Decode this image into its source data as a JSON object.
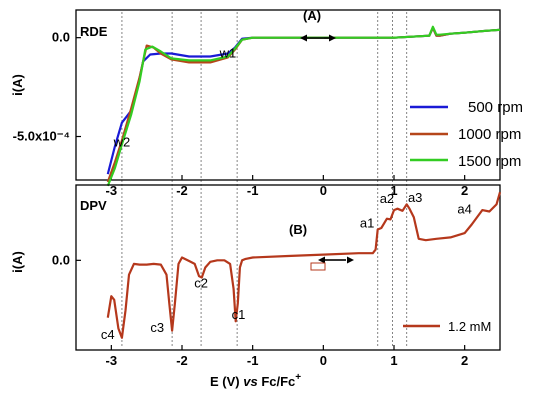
{
  "colors": {
    "s500": "#1a1ad6",
    "s1000": "#b5461a",
    "s1500": "#33cc22",
    "dpv": "#b5381c",
    "dashed": "#666666",
    "axis": "#000000"
  },
  "chart_data": [
    {
      "type": "line",
      "panel_label": "(A)",
      "method_label": "RDE",
      "ylabel": "i(A)",
      "xlim": [
        -3.5,
        2.5
      ],
      "ylim": [
        -0.00072,
        0.00014
      ],
      "y_ticks": [
        {
          "value": 0.0,
          "label": "0.0"
        },
        {
          "value": -0.0005,
          "label": "-5.0x10⁻⁴"
        }
      ],
      "x_ticks": [
        {
          "value": -3,
          "label": "-3"
        },
        {
          "value": -2,
          "label": "-2"
        },
        {
          "value": -1,
          "label": "-1"
        },
        {
          "value": 0,
          "label": "0"
        },
        {
          "value": 1,
          "label": "1"
        },
        {
          "value": 2,
          "label": "2"
        }
      ],
      "legend_position": "right",
      "annotations": [
        {
          "text": "w1",
          "x": -1.35,
          "y": -0.0001
        },
        {
          "text": "w2",
          "x": -2.85,
          "y": -0.00055
        }
      ],
      "series": [
        {
          "name": "500 rpm",
          "x": [
            -3.05,
            -2.95,
            -2.85,
            -2.72,
            -2.62,
            -2.55,
            -2.45,
            -2.3,
            -2.15,
            -1.9,
            -1.6,
            -1.35,
            -1.25,
            -1.15,
            -1.0,
            -0.5,
            0.5,
            1.0,
            1.5,
            1.55,
            1.6,
            1.65,
            1.8,
            2.0,
            2.3,
            2.5
          ],
          "y": [
            -0.00069,
            -0.00055,
            -0.00043,
            -0.00037,
            -0.00024,
            -0.00012,
            -8.5e-05,
            -8e-05,
            -8e-05,
            -9.5e-05,
            -9.5e-05,
            -8e-05,
            -5e-05,
            -5e-06,
            0.0,
            0.0,
            0.0,
            0.0,
            1e-05,
            5e-05,
            1e-05,
            1e-05,
            2e-05,
            2.5e-05,
            3.5e-05,
            4e-05
          ]
        },
        {
          "name": "1000 rpm",
          "x": [
            -3.05,
            -2.95,
            -2.85,
            -2.72,
            -2.6,
            -2.5,
            -2.4,
            -2.3,
            -2.15,
            -1.9,
            -1.6,
            -1.35,
            -1.25,
            -1.15,
            -1.0,
            -0.5,
            0.5,
            1.0,
            1.5,
            1.55,
            1.6,
            1.65,
            1.8,
            2.0,
            2.3,
            2.5
          ],
          "y": [
            -0.00073,
            -0.00063,
            -0.00052,
            -0.00036,
            -0.0002,
            -4e-05,
            -5e-05,
            -8e-05,
            -0.00011,
            -0.000125,
            -0.000125,
            -0.0001,
            -6e-05,
            -1e-05,
            0.0,
            0.0,
            0.0,
            0.0,
            1e-05,
            5e-05,
            1e-05,
            1e-05,
            2e-05,
            2.5e-05,
            3.5e-05,
            4e-05
          ]
        },
        {
          "name": "1500 rpm",
          "x": [
            -3.05,
            -2.95,
            -2.85,
            -2.72,
            -2.6,
            -2.52,
            -2.42,
            -2.3,
            -2.15,
            -1.9,
            -1.6,
            -1.35,
            -1.25,
            -1.15,
            -1.0,
            -0.5,
            0.5,
            1.0,
            1.5,
            1.55,
            1.6,
            1.65,
            1.8,
            2.0,
            2.3,
            2.5
          ],
          "y": [
            -0.00075,
            -0.00066,
            -0.00054,
            -0.00039,
            -0.00022,
            -6e-05,
            -4.5e-05,
            -7e-05,
            -0.000105,
            -0.000115,
            -0.000115,
            -9.5e-05,
            -5.5e-05,
            -1e-05,
            0.0,
            0.0,
            0.0,
            0.0,
            1e-05,
            5.5e-05,
            1.5e-05,
            1.5e-05,
            2e-05,
            2.5e-05,
            3.5e-05,
            4e-05
          ]
        }
      ]
    },
    {
      "type": "line",
      "panel_label": "(B)",
      "method_label": "DPV",
      "ylabel": "i(A)",
      "xlabel": "E (V) vs Fc/Fc⁺",
      "xlim": [
        -3.5,
        2.5
      ],
      "ylim": [
        -1.25,
        1.05
      ],
      "y_ticks": [
        {
          "value": 0.0,
          "label": "0.0"
        }
      ],
      "x_ticks": [
        {
          "value": -3,
          "label": "-3"
        },
        {
          "value": -2,
          "label": "-2"
        },
        {
          "value": -1,
          "label": "-1"
        },
        {
          "value": 0,
          "label": "0"
        },
        {
          "value": 1,
          "label": "1"
        },
        {
          "value": 2,
          "label": "2"
        }
      ],
      "legend_position": "bottom-right",
      "annotations": [
        {
          "text": "c4",
          "x": -3.05,
          "y": -1.1
        },
        {
          "text": "c3",
          "x": -2.35,
          "y": -1.0
        },
        {
          "text": "c2",
          "x": -1.73,
          "y": -0.38
        },
        {
          "text": "c1",
          "x": -1.2,
          "y": -0.82
        },
        {
          "text": "a1",
          "x": 0.62,
          "y": 0.46
        },
        {
          "text": "a2",
          "x": 0.9,
          "y": 0.8
        },
        {
          "text": "a3",
          "x": 1.3,
          "y": 0.81
        },
        {
          "text": "a4",
          "x": 2.0,
          "y": 0.65
        }
      ],
      "series": [
        {
          "name": "1.2 mM",
          "x": [
            -3.05,
            -3.0,
            -2.96,
            -2.9,
            -2.85,
            -2.8,
            -2.75,
            -2.68,
            -2.6,
            -2.5,
            -2.4,
            -2.3,
            -2.22,
            -2.18,
            -2.14,
            -2.1,
            -2.05,
            -2.0,
            -1.9,
            -1.82,
            -1.76,
            -1.72,
            -1.67,
            -1.6,
            -1.5,
            -1.4,
            -1.32,
            -1.27,
            -1.24,
            -1.21,
            -1.18,
            -1.15,
            -1.1,
            -1.0,
            -0.5,
            0.0,
            0.5,
            0.7,
            0.74,
            0.77,
            0.82,
            0.9,
            0.95,
            1.0,
            1.05,
            1.12,
            1.18,
            1.22,
            1.28,
            1.35,
            1.45,
            1.6,
            1.8,
            2.0,
            2.1,
            2.25,
            2.35,
            2.45,
            2.5
          ],
          "y": [
            -0.8,
            -0.5,
            -0.55,
            -0.95,
            -1.08,
            -0.7,
            -0.2,
            -0.05,
            -0.06,
            -0.06,
            -0.05,
            -0.06,
            -0.2,
            -0.6,
            -0.98,
            -0.6,
            -0.05,
            0.04,
            -0.01,
            -0.05,
            -0.22,
            -0.24,
            -0.1,
            -0.02,
            0.0,
            0.0,
            -0.05,
            -0.4,
            -0.85,
            -0.6,
            -0.1,
            0.0,
            0.02,
            0.04,
            0.06,
            0.08,
            0.1,
            0.1,
            0.15,
            0.43,
            0.45,
            0.58,
            0.57,
            0.7,
            0.72,
            0.69,
            0.78,
            0.72,
            0.6,
            0.3,
            0.28,
            0.3,
            0.32,
            0.38,
            0.5,
            0.7,
            0.68,
            0.78,
            0.95
          ]
        }
      ]
    }
  ]
}
